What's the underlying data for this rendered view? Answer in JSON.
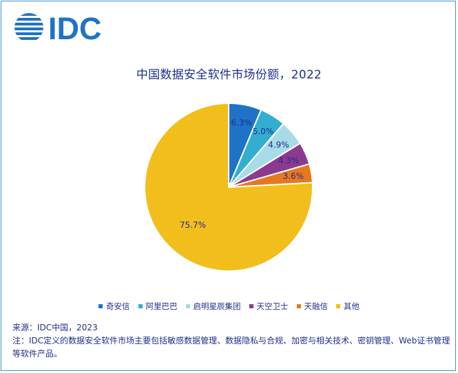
{
  "brand": {
    "logo_text": "IDC",
    "logo_color": "#1f73c6"
  },
  "chart_data": {
    "type": "pie",
    "title": "中国数据安全软件市场份额，2022",
    "slices": [
      {
        "label": "奇安信",
        "value": 6.3,
        "value_label": "6.3%",
        "color": "#1f73c6"
      },
      {
        "label": "阿里巴巴",
        "value": 5.0,
        "value_label": "5.0%",
        "color": "#33aed0"
      },
      {
        "label": "启明星辰集团",
        "value": 4.9,
        "value_label": "4.9%",
        "color": "#a8dbe8"
      },
      {
        "label": "天空卫士",
        "value": 4.3,
        "value_label": "4.3%",
        "color": "#8b3a8f"
      },
      {
        "label": "天融信",
        "value": 3.6,
        "value_label": "3.6%",
        "color": "#e8781e"
      },
      {
        "label": "其他",
        "value": 75.7,
        "value_label": "75.7%",
        "color": "#f2be1c"
      }
    ],
    "start_angle": "12 o'clock",
    "direction": "clockwise",
    "legend_position": "bottom"
  },
  "notes": {
    "source": "来源：IDC中国，2023",
    "note": "注：IDC定义的数据安全软件市场主要包括敏感数据管理、数据隐私与合规、加密与相关技术、密钥管理、Web证书管理等软件产品。"
  },
  "colors": {
    "frame": "#3f8fd2",
    "text": "#1f2f8c",
    "label_text": "#1f2f8c"
  }
}
